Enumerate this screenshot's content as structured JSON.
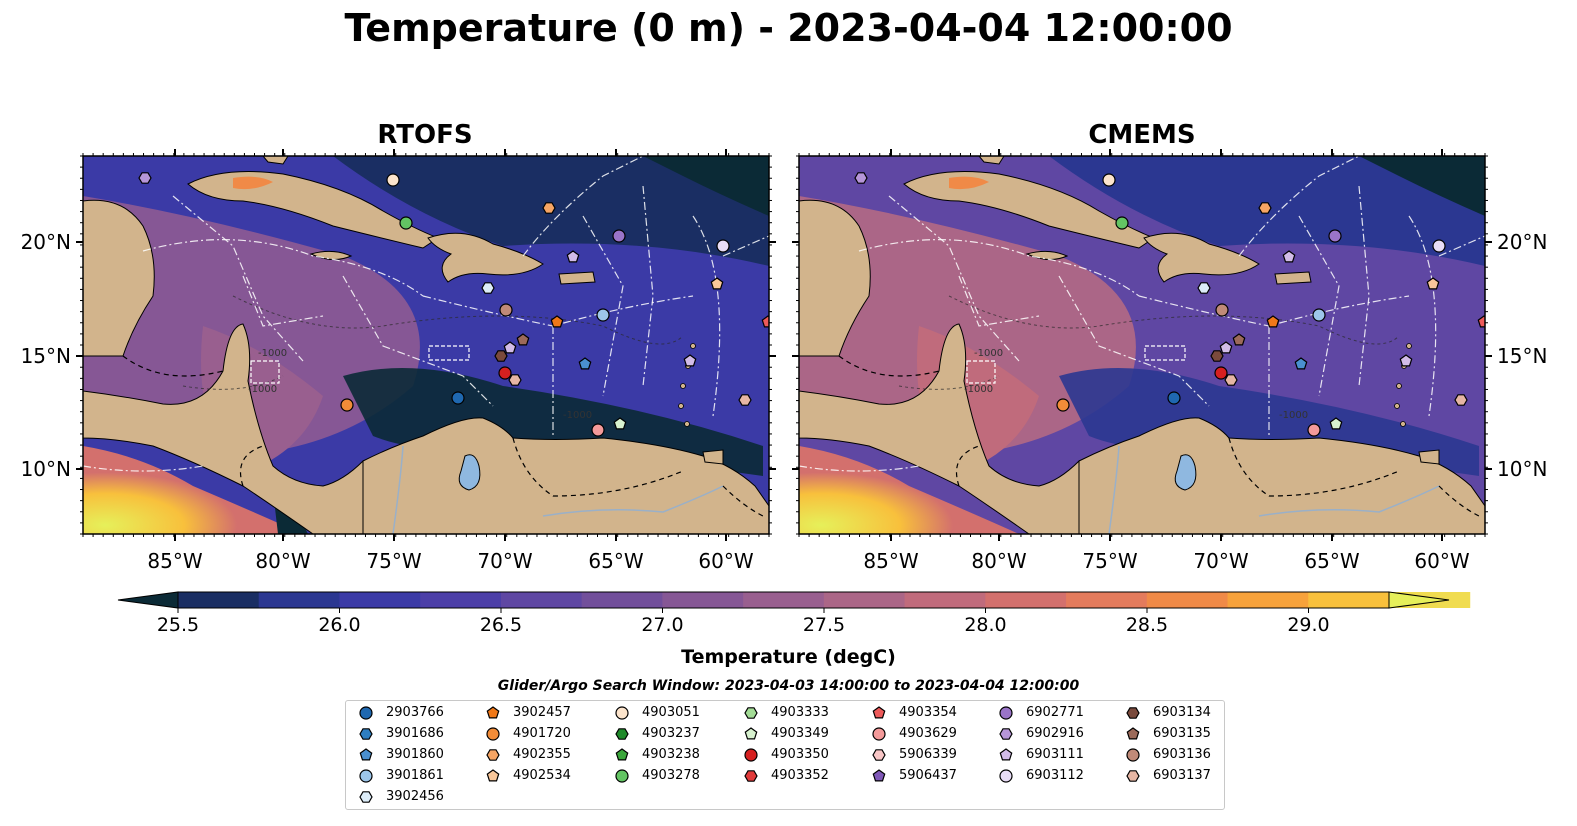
{
  "title": "Temperature (0 m) - 2023-04-04 12:00:00",
  "panels": [
    {
      "id": "rtofs",
      "title": "RTOFS"
    },
    {
      "id": "cmems",
      "title": "CMEMS"
    }
  ],
  "map": {
    "lon_ticks": [
      "85°W",
      "80°W",
      "75°W",
      "70°W",
      "65°W",
      "60°W"
    ],
    "lat_ticks": [
      "20°N",
      "15°N",
      "10°N"
    ],
    "contour_labels": [
      "-1000",
      "-1000",
      "-1000"
    ]
  },
  "colorbar": {
    "label": "Temperature (degC)",
    "ticks": [
      "25.5",
      "26.0",
      "26.5",
      "27.0",
      "27.5",
      "28.0",
      "28.5",
      "29.0"
    ],
    "colors": [
      "#0b2a36",
      "#1a2e63",
      "#2b3791",
      "#3b3aa6",
      "#4c3fa8",
      "#5f47a3",
      "#724f9b",
      "#865795",
      "#995f8f",
      "#ab6687",
      "#c06b7c",
      "#d3706d",
      "#e47b5c",
      "#f08a47",
      "#f7a23b",
      "#f8c03c",
      "#f0dc50",
      "#e6f05a"
    ],
    "extend": "both"
  },
  "legend": {
    "title": "Glider/Argo Search Window: 2023-04-03 14:00:00 to 2023-04-04 12:00:00",
    "items": [
      {
        "id": "2903766",
        "marker": "circle",
        "color": "#1f68b0"
      },
      {
        "id": "3901686",
        "marker": "hexagon",
        "color": "#2e7ec0"
      },
      {
        "id": "3901860",
        "marker": "pentagon",
        "color": "#4a90d0"
      },
      {
        "id": "3901861",
        "marker": "circle",
        "color": "#9dc6ea"
      },
      {
        "id": "3902456",
        "marker": "hexagon",
        "color": "#dcecf8"
      },
      {
        "id": "3902457",
        "marker": "pentagon",
        "color": "#f07818"
      },
      {
        "id": "4901720",
        "marker": "circle",
        "color": "#f28c38"
      },
      {
        "id": "4902355",
        "marker": "hexagon",
        "color": "#f6a564"
      },
      {
        "id": "4902534",
        "marker": "pentagon",
        "color": "#f9c79a"
      },
      {
        "id": "4903051",
        "marker": "circle",
        "color": "#fce4cc"
      },
      {
        "id": "4903237",
        "marker": "hexagon",
        "color": "#1f8a2a"
      },
      {
        "id": "4903238",
        "marker": "pentagon",
        "color": "#3aa63a"
      },
      {
        "id": "4903278",
        "marker": "circle",
        "color": "#63c463"
      },
      {
        "id": "4903333",
        "marker": "hexagon",
        "color": "#a3dc96"
      },
      {
        "id": "4903349",
        "marker": "pentagon",
        "color": "#d8f2cf"
      },
      {
        "id": "4903350",
        "marker": "circle",
        "color": "#d62020"
      },
      {
        "id": "4903352",
        "marker": "hexagon",
        "color": "#e03a3a"
      },
      {
        "id": "4903354",
        "marker": "pentagon",
        "color": "#ee5a5a"
      },
      {
        "id": "4903629",
        "marker": "circle",
        "color": "#f49a9a"
      },
      {
        "id": "5906339",
        "marker": "hexagon",
        "color": "#f8c6c6"
      },
      {
        "id": "5906437",
        "marker": "pentagon",
        "color": "#8058b8"
      },
      {
        "id": "6902771",
        "marker": "circle",
        "color": "#9a74c8"
      },
      {
        "id": "6902916",
        "marker": "hexagon",
        "color": "#b696d8"
      },
      {
        "id": "6903111",
        "marker": "pentagon",
        "color": "#d2bce8"
      },
      {
        "id": "6903112",
        "marker": "circle",
        "color": "#e8dcf6"
      },
      {
        "id": "6903134",
        "marker": "hexagon",
        "color": "#7a4a3c"
      },
      {
        "id": "6903135",
        "marker": "pentagon",
        "color": "#9c6a5a"
      },
      {
        "id": "6903136",
        "marker": "circle",
        "color": "#c08a78"
      },
      {
        "id": "6903137",
        "marker": "hexagon",
        "color": "#e6b6a4"
      }
    ]
  }
}
